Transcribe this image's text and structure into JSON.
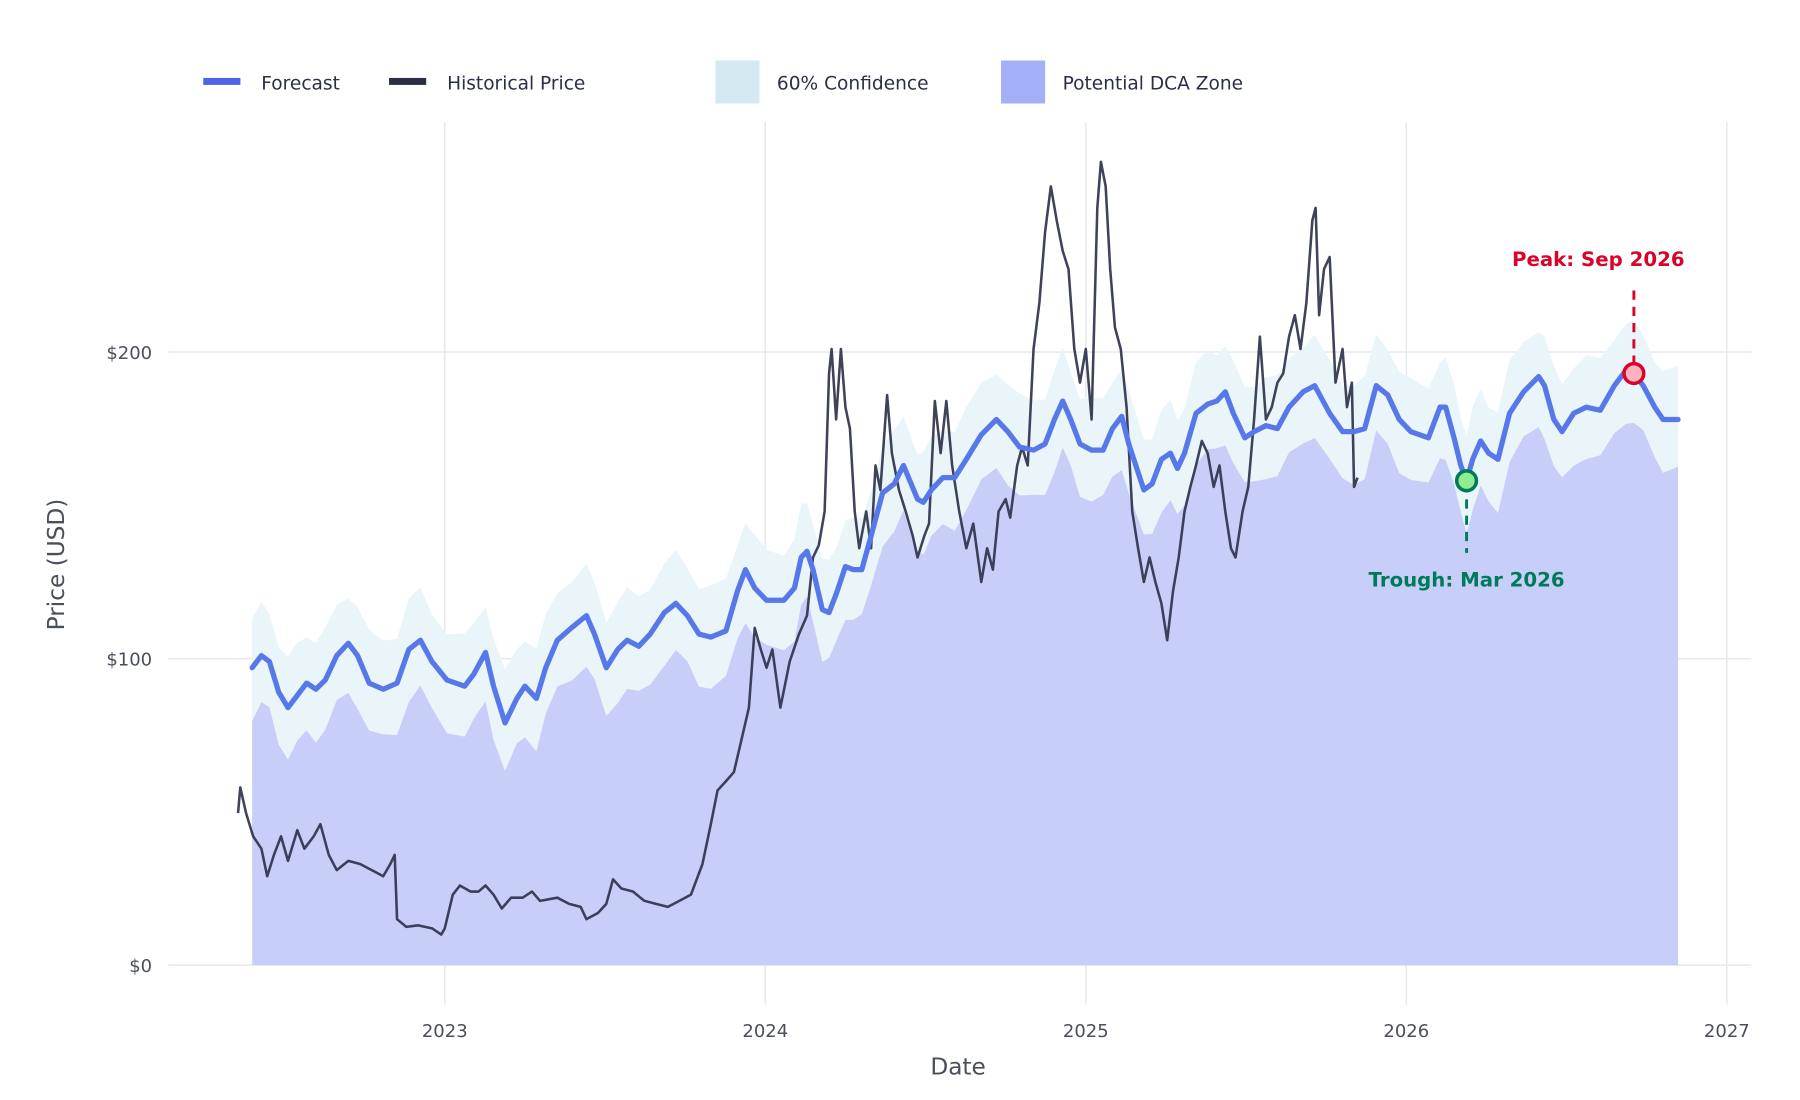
{
  "colors": {
    "forecast": "#5878ea",
    "historical": "#2a2f48",
    "confidence": "#eaf5f9",
    "confidence_legend": "#d4eaf0",
    "dca_zone": "#c7cff8",
    "dca_legend": "#a3b0f5",
    "peak": "#d90429",
    "trough": "#007a5a",
    "grid": "#e6e8ee"
  },
  "chart_data": {
    "type": "line",
    "xlabel": "Date",
    "ylabel": "Price (USD)",
    "xlim": [
      2022.134,
      2027.076
    ],
    "ylim": [
      -12,
      275
    ],
    "grid": true,
    "legend_position": "top-left",
    "x_ticks": [
      {
        "value": 2023,
        "label": "2023"
      },
      {
        "value": 2024,
        "label": "2024"
      },
      {
        "value": 2025,
        "label": "2025"
      },
      {
        "value": 2026,
        "label": "2026"
      },
      {
        "value": 2027,
        "label": "2027"
      }
    ],
    "y_ticks": [
      {
        "value": 0,
        "label": "$0"
      },
      {
        "value": 100,
        "label": "$100"
      },
      {
        "value": 200,
        "label": "$200"
      }
    ],
    "legend": [
      {
        "key": "forecast",
        "label": "Forecast",
        "kind": "line"
      },
      {
        "key": "historical",
        "label": "Historical Price",
        "kind": "line"
      },
      {
        "key": "confidence",
        "label": "60% Confidence",
        "kind": "box"
      },
      {
        "key": "dca",
        "label": "Potential DCA Zone",
        "kind": "box"
      }
    ],
    "confidence_band": {
      "level": "60%",
      "lower_offset": -16,
      "upper_offset": 16
    },
    "historical": [
      [
        2022.355,
        49.6
      ],
      [
        2022.362,
        58
      ],
      [
        2022.38,
        49.6
      ],
      [
        2022.402,
        42
      ],
      [
        2022.428,
        38
      ],
      [
        2022.446,
        29
      ],
      [
        2022.467,
        36
      ],
      [
        2022.489,
        42
      ],
      [
        2022.511,
        34
      ],
      [
        2022.54,
        44
      ],
      [
        2022.562,
        38
      ],
      [
        2022.591,
        42
      ],
      [
        2022.612,
        46
      ],
      [
        2022.638,
        36
      ],
      [
        2022.663,
        31
      ],
      [
        2022.699,
        34
      ],
      [
        2022.736,
        33
      ],
      [
        2022.772,
        31
      ],
      [
        2022.808,
        29
      ],
      [
        2022.83,
        33
      ],
      [
        2022.844,
        36
      ],
      [
        2022.851,
        15
      ],
      [
        2022.88,
        12.5
      ],
      [
        2022.917,
        13
      ],
      [
        2022.96,
        12
      ],
      [
        2022.989,
        10
      ],
      [
        2023.0,
        12
      ],
      [
        2023.025,
        23
      ],
      [
        2023.047,
        26
      ],
      [
        2023.08,
        24
      ],
      [
        2023.105,
        24
      ],
      [
        2023.127,
        26
      ],
      [
        2023.152,
        23
      ],
      [
        2023.178,
        18.5
      ],
      [
        2023.207,
        22
      ],
      [
        2023.243,
        22
      ],
      [
        2023.272,
        24
      ],
      [
        2023.297,
        21
      ],
      [
        2023.351,
        22
      ],
      [
        2023.388,
        20
      ],
      [
        2023.424,
        19
      ],
      [
        2023.442,
        15
      ],
      [
        2023.478,
        17
      ],
      [
        2023.504,
        20
      ],
      [
        2023.525,
        28
      ],
      [
        2023.551,
        25
      ],
      [
        2023.587,
        24
      ],
      [
        2023.623,
        21
      ],
      [
        2023.659,
        20
      ],
      [
        2023.696,
        19
      ],
      [
        2023.732,
        21
      ],
      [
        2023.768,
        23
      ],
      [
        2023.804,
        33
      ],
      [
        2023.83,
        46
      ],
      [
        2023.851,
        57
      ],
      [
        2023.877,
        60
      ],
      [
        2023.902,
        63
      ],
      [
        2023.931,
        76
      ],
      [
        2023.949,
        84
      ],
      [
        2023.967,
        110
      ],
      [
        2023.986,
        103
      ],
      [
        2024.004,
        97
      ],
      [
        2024.022,
        103
      ],
      [
        2024.047,
        84
      ],
      [
        2024.076,
        99
      ],
      [
        2024.105,
        108
      ],
      [
        2024.13,
        114
      ],
      [
        2024.149,
        133
      ],
      [
        2024.167,
        137
      ],
      [
        2024.185,
        148
      ],
      [
        2024.199,
        193
      ],
      [
        2024.207,
        201
      ],
      [
        2024.221,
        178
      ],
      [
        2024.236,
        201
      ],
      [
        2024.25,
        182
      ],
      [
        2024.264,
        175
      ],
      [
        2024.279,
        148
      ],
      [
        2024.293,
        136
      ],
      [
        2024.315,
        148
      ],
      [
        2024.33,
        136
      ],
      [
        2024.344,
        163
      ],
      [
        2024.359,
        155
      ],
      [
        2024.38,
        186
      ],
      [
        2024.395,
        167
      ],
      [
        2024.417,
        155
      ],
      [
        2024.438,
        148
      ],
      [
        2024.46,
        140
      ],
      [
        2024.475,
        133
      ],
      [
        2024.496,
        140
      ],
      [
        2024.511,
        144
      ],
      [
        2024.529,
        184
      ],
      [
        2024.547,
        167
      ],
      [
        2024.565,
        184
      ],
      [
        2024.583,
        163
      ],
      [
        2024.605,
        148
      ],
      [
        2024.627,
        136
      ],
      [
        2024.649,
        144
      ],
      [
        2024.674,
        125
      ],
      [
        2024.692,
        136
      ],
      [
        2024.71,
        129
      ],
      [
        2024.728,
        148
      ],
      [
        2024.75,
        152
      ],
      [
        2024.764,
        146
      ],
      [
        2024.786,
        163
      ],
      [
        2024.801,
        169
      ],
      [
        2024.819,
        163
      ],
      [
        2024.837,
        201
      ],
      [
        2024.855,
        216
      ],
      [
        2024.873,
        239
      ],
      [
        2024.891,
        254
      ],
      [
        2024.909,
        243
      ],
      [
        2024.928,
        233
      ],
      [
        2024.946,
        227
      ],
      [
        2024.964,
        201
      ],
      [
        2024.982,
        190
      ],
      [
        2025.0,
        201
      ],
      [
        2025.018,
        178
      ],
      [
        2025.036,
        247
      ],
      [
        2025.047,
        262
      ],
      [
        2025.062,
        254
      ],
      [
        2025.076,
        227
      ],
      [
        2025.091,
        208
      ],
      [
        2025.109,
        201
      ],
      [
        2025.127,
        182
      ],
      [
        2025.145,
        148
      ],
      [
        2025.163,
        136
      ],
      [
        2025.181,
        125
      ],
      [
        2025.199,
        133
      ],
      [
        2025.217,
        125
      ],
      [
        2025.236,
        118
      ],
      [
        2025.254,
        106
      ],
      [
        2025.272,
        122
      ],
      [
        2025.29,
        133
      ],
      [
        2025.308,
        148
      ],
      [
        2025.326,
        156
      ],
      [
        2025.344,
        163
      ],
      [
        2025.362,
        171
      ],
      [
        2025.38,
        167
      ],
      [
        2025.399,
        156
      ],
      [
        2025.417,
        163
      ],
      [
        2025.435,
        148
      ],
      [
        2025.453,
        136
      ],
      [
        2025.467,
        133
      ],
      [
        2025.489,
        148
      ],
      [
        2025.507,
        156
      ],
      [
        2025.525,
        178
      ],
      [
        2025.543,
        205
      ],
      [
        2025.562,
        178
      ],
      [
        2025.58,
        182
      ],
      [
        2025.598,
        190
      ],
      [
        2025.616,
        193
      ],
      [
        2025.634,
        205
      ],
      [
        2025.652,
        212
      ],
      [
        2025.67,
        201
      ],
      [
        2025.688,
        216
      ],
      [
        2025.707,
        243
      ],
      [
        2025.717,
        247
      ],
      [
        2025.728,
        212
      ],
      [
        2025.743,
        227
      ],
      [
        2025.761,
        231
      ],
      [
        2025.779,
        190
      ],
      [
        2025.801,
        201
      ],
      [
        2025.815,
        182
      ],
      [
        2025.83,
        190
      ],
      [
        2025.837,
        156
      ],
      [
        2025.848,
        159
      ]
    ],
    "forecast": [
      [
        2022.399,
        97
      ],
      [
        2022.428,
        101
      ],
      [
        2022.453,
        99
      ],
      [
        2022.482,
        89
      ],
      [
        2022.511,
        84
      ],
      [
        2022.54,
        88
      ],
      [
        2022.569,
        92
      ],
      [
        2022.598,
        90
      ],
      [
        2022.627,
        93
      ],
      [
        2022.663,
        101
      ],
      [
        2022.699,
        105
      ],
      [
        2022.728,
        101
      ],
      [
        2022.764,
        92
      ],
      [
        2022.808,
        90
      ],
      [
        2022.851,
        92
      ],
      [
        2022.888,
        103
      ],
      [
        2022.924,
        106
      ],
      [
        2022.96,
        99
      ],
      [
        2023.007,
        93
      ],
      [
        2023.062,
        91
      ],
      [
        2023.091,
        95
      ],
      [
        2023.127,
        102
      ],
      [
        2023.152,
        91
      ],
      [
        2023.188,
        79
      ],
      [
        2023.225,
        87
      ],
      [
        2023.25,
        91
      ],
      [
        2023.286,
        87
      ],
      [
        2023.315,
        97
      ],
      [
        2023.351,
        106
      ],
      [
        2023.395,
        110
      ],
      [
        2023.442,
        114
      ],
      [
        2023.467,
        108
      ],
      [
        2023.504,
        97
      ],
      [
        2023.54,
        103
      ],
      [
        2023.569,
        106
      ],
      [
        2023.605,
        104
      ],
      [
        2023.641,
        108
      ],
      [
        2023.685,
        115
      ],
      [
        2023.721,
        118
      ],
      [
        2023.757,
        114
      ],
      [
        2023.793,
        108
      ],
      [
        2023.83,
        107
      ],
      [
        2023.877,
        109
      ],
      [
        2023.913,
        122
      ],
      [
        2023.938,
        129
      ],
      [
        2023.967,
        123
      ],
      [
        2024.004,
        119
      ],
      [
        2024.058,
        119
      ],
      [
        2024.091,
        123
      ],
      [
        2024.112,
        133
      ],
      [
        2024.13,
        135
      ],
      [
        2024.149,
        129
      ],
      [
        2024.178,
        116
      ],
      [
        2024.199,
        115
      ],
      [
        2024.221,
        121
      ],
      [
        2024.25,
        130
      ],
      [
        2024.275,
        129
      ],
      [
        2024.301,
        129
      ],
      [
        2024.33,
        140
      ],
      [
        2024.366,
        154
      ],
      [
        2024.402,
        157
      ],
      [
        2024.431,
        163
      ],
      [
        2024.475,
        152
      ],
      [
        2024.493,
        151
      ],
      [
        2024.518,
        155
      ],
      [
        2024.554,
        159
      ],
      [
        2024.591,
        159
      ],
      [
        2024.627,
        165
      ],
      [
        2024.674,
        173
      ],
      [
        2024.721,
        178
      ],
      [
        2024.757,
        174
      ],
      [
        2024.793,
        169
      ],
      [
        2024.837,
        168
      ],
      [
        2024.873,
        170
      ],
      [
        2024.902,
        178
      ],
      [
        2024.928,
        184
      ],
      [
        2024.953,
        178
      ],
      [
        2024.982,
        170
      ],
      [
        2025.018,
        168
      ],
      [
        2025.054,
        168
      ],
      [
        2025.083,
        175
      ],
      [
        2025.112,
        179
      ],
      [
        2025.134,
        170
      ],
      [
        2025.181,
        155
      ],
      [
        2025.207,
        157
      ],
      [
        2025.236,
        165
      ],
      [
        2025.264,
        167
      ],
      [
        2025.286,
        162
      ],
      [
        2025.308,
        167
      ],
      [
        2025.344,
        180
      ],
      [
        2025.38,
        183
      ],
      [
        2025.409,
        184
      ],
      [
        2025.435,
        187
      ],
      [
        2025.46,
        180
      ],
      [
        2025.496,
        172
      ],
      [
        2025.525,
        174
      ],
      [
        2025.562,
        176
      ],
      [
        2025.598,
        175
      ],
      [
        2025.634,
        182
      ],
      [
        2025.678,
        187
      ],
      [
        2025.714,
        189
      ],
      [
        2025.761,
        180
      ],
      [
        2025.801,
        174
      ],
      [
        2025.837,
        174
      ],
      [
        2025.87,
        175
      ],
      [
        2025.906,
        189
      ],
      [
        2025.942,
        186
      ],
      [
        2025.978,
        178
      ],
      [
        2026.014,
        174
      ],
      [
        2026.069,
        172
      ],
      [
        2026.105,
        182
      ],
      [
        2026.123,
        182
      ],
      [
        2026.149,
        172
      ],
      [
        2026.17,
        163
      ],
      [
        2026.188,
        158
      ],
      [
        2026.207,
        165
      ],
      [
        2026.232,
        171
      ],
      [
        2026.257,
        167
      ],
      [
        2026.286,
        165
      ],
      [
        2026.322,
        180
      ],
      [
        2026.366,
        187
      ],
      [
        2026.413,
        192
      ],
      [
        2026.431,
        189
      ],
      [
        2026.46,
        178
      ],
      [
        2026.486,
        174
      ],
      [
        2026.522,
        180
      ],
      [
        2026.562,
        182
      ],
      [
        2026.605,
        181
      ],
      [
        2026.649,
        189
      ],
      [
        2026.685,
        194
      ],
      [
        2026.71,
        193
      ],
      [
        2026.739,
        189
      ],
      [
        2026.775,
        182
      ],
      [
        2026.801,
        178
      ],
      [
        2026.848,
        178
      ]
    ],
    "annotations": [
      {
        "key": "peak",
        "label": "Peak: Sep 2026",
        "x": 2026.71,
        "y": 193
      },
      {
        "key": "trough",
        "label": "Trough: Mar 2026",
        "x": 2026.188,
        "y": 158
      }
    ]
  }
}
